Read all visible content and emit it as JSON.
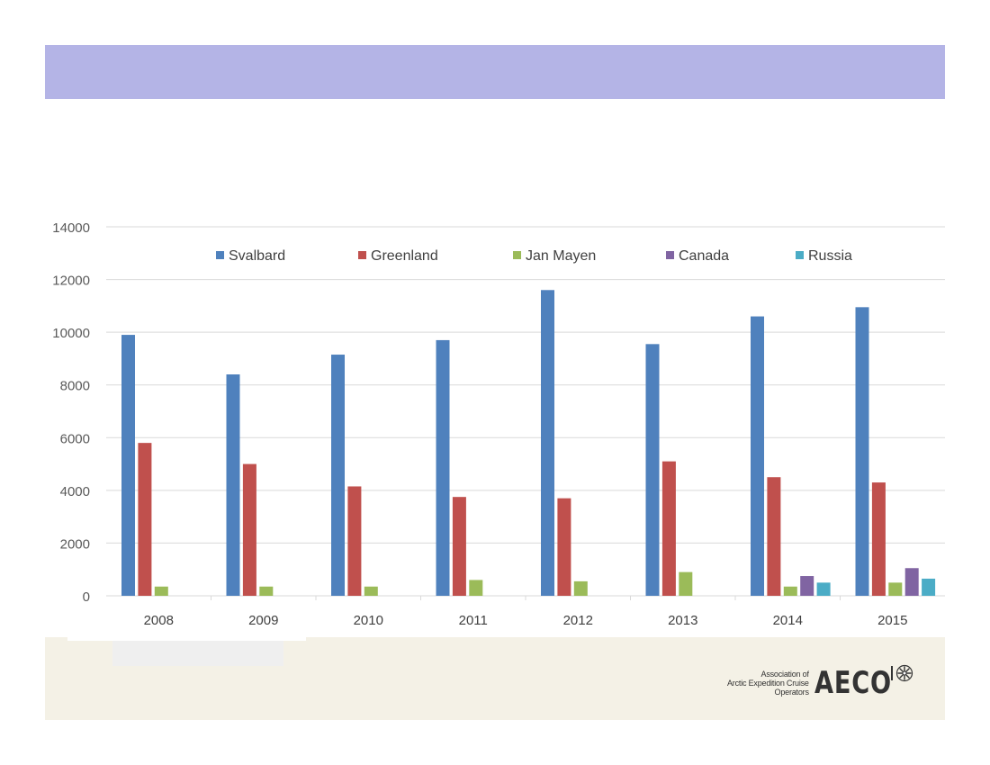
{
  "colors": {
    "header_band": "#b4b4e6",
    "footer_band": "#f4f1e6",
    "series": [
      "#4f81bd",
      "#c0504d",
      "#9bbb59",
      "#8064a2",
      "#4bacc6"
    ]
  },
  "logo": {
    "line1": "Association of",
    "line2": "Arctic Expedition Cruise",
    "line3": "Operators",
    "mark": "AECO",
    "icon": "compass-icon"
  },
  "chart_data": {
    "type": "bar",
    "title": "",
    "xlabel": "",
    "ylabel": "",
    "categories": [
      "2008",
      "2009",
      "2010",
      "2011",
      "2012",
      "2013",
      "2014",
      "2015"
    ],
    "series": [
      {
        "name": "Svalbard",
        "color": "#4f81bd",
        "values": [
          9900,
          8400,
          9150,
          9700,
          11600,
          9550,
          10600,
          10950
        ]
      },
      {
        "name": "Greenland",
        "color": "#c0504d",
        "values": [
          5800,
          5000,
          4150,
          3750,
          3700,
          5100,
          4500,
          4300
        ]
      },
      {
        "name": "Jan Mayen",
        "color": "#9bbb59",
        "values": [
          350,
          350,
          350,
          600,
          550,
          900,
          350,
          500
        ]
      },
      {
        "name": "Canada",
        "color": "#8064a2",
        "values": [
          0,
          0,
          0,
          0,
          0,
          0,
          750,
          1050
        ]
      },
      {
        "name": "Russia",
        "color": "#4bacc6",
        "values": [
          0,
          0,
          0,
          0,
          0,
          0,
          500,
          650
        ]
      }
    ],
    "ylim": [
      0,
      14000
    ],
    "yticks": [
      "0",
      "2000",
      "4000",
      "6000",
      "8000",
      "10000",
      "12000",
      "14000"
    ],
    "grid": true,
    "legend_position": "top"
  }
}
